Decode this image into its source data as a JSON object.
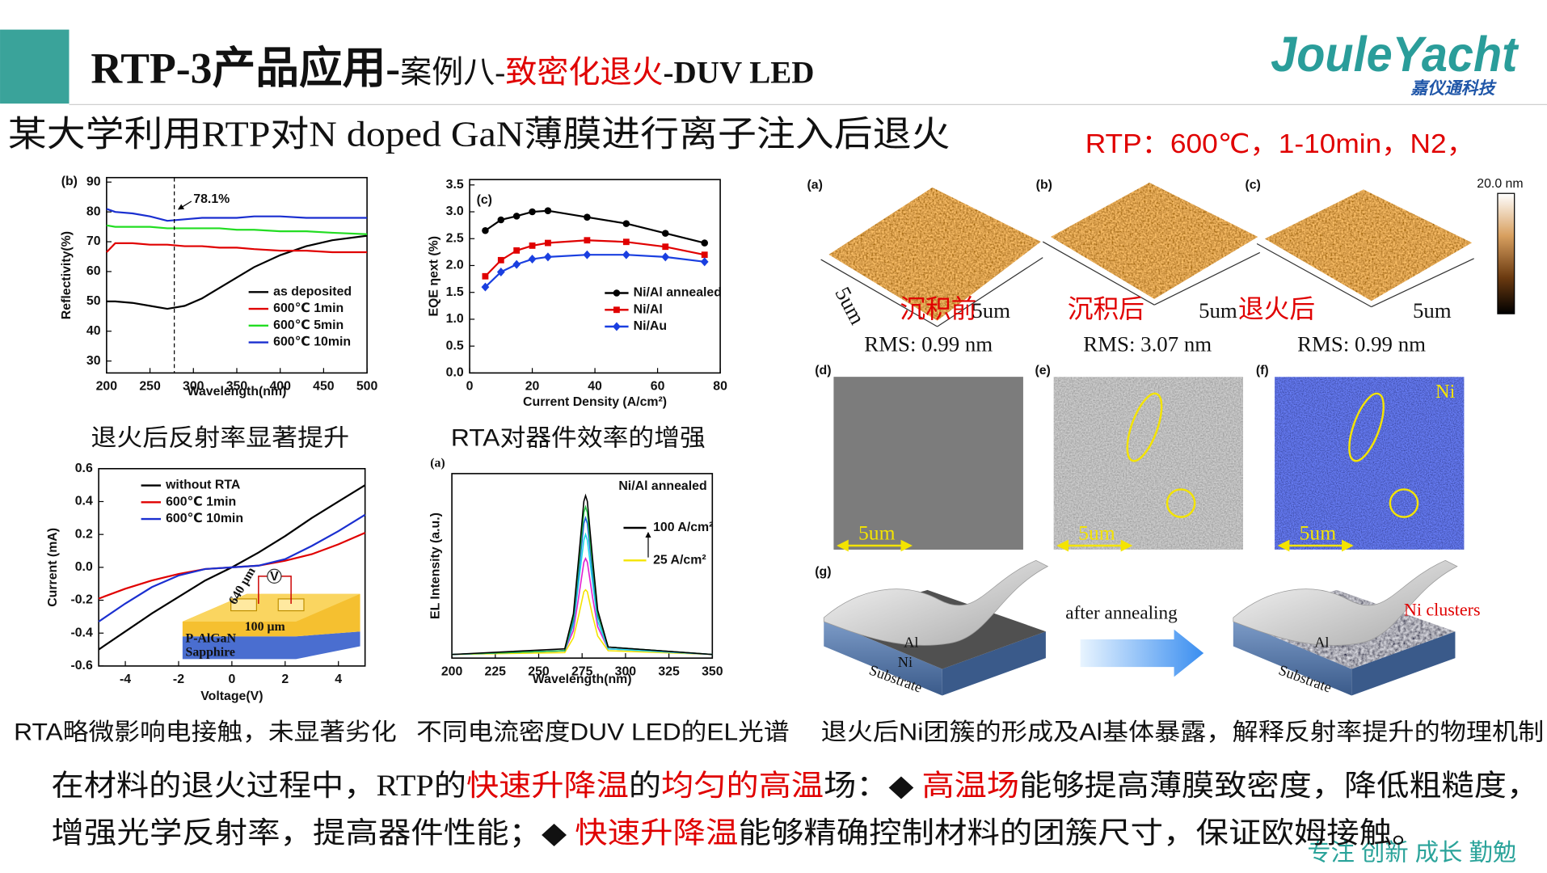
{
  "header": {
    "title_main": "RTP-3产品应用-",
    "title_case": "案例八-",
    "title_red": "致密化退火",
    "title_tail": "-DUV LED",
    "logo": "JouleYacht",
    "logo_sub": "嘉仪通科技"
  },
  "subtitle": "某大学利用RTP对N doped GaN薄膜进行离子注入后退火",
  "conditions": "RTP：600℃，1-10min，N2，",
  "figures": {
    "refl": {
      "panel": "(b)",
      "xlabel": "Wavelength(nm)",
      "ylabel": "Reflectivity(%)",
      "caption": "退火后反射率显著提升",
      "xlim": [
        200,
        500
      ],
      "ylim": [
        26,
        91.5
      ],
      "xticks": [
        200,
        250,
        300,
        350,
        400,
        450,
        500
      ],
      "yticks": [
        30,
        40,
        50,
        60,
        70,
        80,
        90
      ],
      "x": [
        200,
        210,
        230,
        250,
        270,
        290,
        310,
        330,
        350,
        370,
        400,
        430,
        460,
        500
      ],
      "annotation": {
        "text": "78.1%",
        "x": 278
      },
      "series": [
        {
          "name": "as deposited",
          "color": "#000000",
          "values": [
            50,
            50,
            49.5,
            48.5,
            47.5,
            48.5,
            51,
            54.5,
            58,
            61.5,
            65.5,
            68.5,
            70.5,
            72
          ]
        },
        {
          "name": "600℃ 1min",
          "color": "#e00000",
          "values": [
            66.5,
            69.5,
            69.5,
            69,
            69,
            68.5,
            68.5,
            68,
            68,
            67.5,
            67,
            67,
            66.5,
            66.5
          ]
        },
        {
          "name": "600℃ 5min",
          "color": "#22dd22",
          "values": [
            75.5,
            75,
            75,
            75,
            74.5,
            74.5,
            74.5,
            74.5,
            74,
            74,
            73.5,
            73.5,
            73,
            72.5
          ]
        },
        {
          "name": "600℃ 10min",
          "color": "#1a2fd0",
          "values": [
            81,
            80,
            79.5,
            78.5,
            77,
            77.5,
            78,
            78,
            78,
            78.5,
            78.5,
            78,
            78,
            78
          ]
        }
      ]
    },
    "eqe": {
      "panel": "(c)",
      "xlabel": "Current Density (A/cm²)",
      "ylabel": "EQE ηext (%)",
      "caption": "RTA对器件效率的增强",
      "xlim": [
        0,
        80
      ],
      "ylim": [
        0,
        3.6
      ],
      "xticks": [
        0,
        20,
        40,
        60,
        80
      ],
      "yticks": [
        {
          "value": 0,
          "label": "0.0"
        },
        0.5,
        {
          "value": 1,
          "label": "1.0"
        },
        1.5,
        {
          "value": 2,
          "label": "2.0"
        },
        2.5,
        {
          "value": 3,
          "label": "3.0"
        },
        3.5
      ],
      "series": [
        {
          "name": "Ni/Al annealed",
          "color": "#000000",
          "marker": "circle",
          "x": [
            5,
            10,
            15,
            20,
            25,
            37.5,
            50,
            62.5,
            75
          ],
          "values": [
            2.65,
            2.85,
            2.92,
            3.0,
            3.02,
            2.9,
            2.78,
            2.6,
            2.42
          ]
        },
        {
          "name": "Ni/Al",
          "color": "#e00000",
          "marker": "square",
          "x": [
            5,
            10,
            15,
            20,
            25,
            37.5,
            50,
            62.5,
            75
          ],
          "values": [
            1.8,
            2.1,
            2.28,
            2.37,
            2.42,
            2.47,
            2.44,
            2.35,
            2.2
          ]
        },
        {
          "name": "Ni/Au",
          "color": "#1a3fe0",
          "marker": "diamond",
          "x": [
            5,
            10,
            15,
            20,
            25,
            37.5,
            50,
            62.5,
            75
          ],
          "values": [
            1.6,
            1.88,
            2.02,
            2.12,
            2.16,
            2.2,
            2.2,
            2.16,
            2.07
          ]
        }
      ]
    },
    "iv": {
      "xlabel": "Voltage(V)",
      "ylabel": "Current (mA)",
      "caption": "RTA略微影响电接触，未显著劣化",
      "xlim": [
        -5,
        5
      ],
      "ylim": [
        -0.6,
        0.6
      ],
      "xticks": [
        -4,
        -2,
        0,
        2,
        4
      ],
      "yticks": [
        0.6,
        0.4,
        0.2,
        {
          "value": 0,
          "label": "0.0"
        },
        -0.2,
        -0.4,
        -0.6
      ],
      "x": [
        -5,
        -4,
        -3,
        -2,
        -1,
        0,
        1,
        2,
        3,
        4,
        5
      ],
      "inset": {
        "width": "640 μm",
        "gap": "100 μm",
        "layer": "P-AlGaN",
        "substrate": "Sapphire",
        "meter": "V"
      },
      "series": [
        {
          "name": "without RTA",
          "color": "#000000",
          "values": [
            -0.5,
            -0.39,
            -0.28,
            -0.18,
            -0.08,
            0,
            0.09,
            0.19,
            0.3,
            0.4,
            0.5
          ]
        },
        {
          "name": "600℃ 1min",
          "color": "#e00000",
          "values": [
            -0.19,
            -0.13,
            -0.08,
            -0.04,
            -0.01,
            0,
            0.01,
            0.04,
            0.08,
            0.14,
            0.21
          ]
        },
        {
          "name": "600℃ 10min",
          "color": "#1a2fd0",
          "values": [
            -0.33,
            -0.22,
            -0.12,
            -0.05,
            -0.01,
            0,
            0.01,
            0.05,
            0.13,
            0.22,
            0.32
          ]
        }
      ]
    },
    "el": {
      "panel": "(a)",
      "legend_title": "Ni/Al annealed",
      "high": "100 A/cm²",
      "low": "25 A/cm²",
      "xlabel": "Wavelength(nm)",
      "ylabel": "EL Intensity (a.u.)",
      "caption": "不同电流密度DUV LED的EL光谱",
      "xlim": [
        200,
        350
      ],
      "ylim": [
        0,
        1
      ],
      "xticks": [
        200,
        225,
        250,
        275,
        300,
        325,
        350
      ],
      "x": [
        200,
        265,
        270,
        273,
        276,
        277,
        278,
        281,
        284,
        290,
        350
      ],
      "series": [
        {
          "color": "#f4e400",
          "values": [
            0.02,
            0.03,
            0.11,
            0.23,
            0.36,
            0.37,
            0.36,
            0.23,
            0.12,
            0.04,
            0.02
          ]
        },
        {
          "color": "#e020d0",
          "values": [
            0.02,
            0.04,
            0.15,
            0.33,
            0.52,
            0.54,
            0.52,
            0.33,
            0.17,
            0.05,
            0.02
          ]
        },
        {
          "color": "#20d8e8",
          "values": [
            0.02,
            0.04,
            0.18,
            0.41,
            0.64,
            0.67,
            0.64,
            0.41,
            0.2,
            0.05,
            0.02
          ]
        },
        {
          "color": "#2060e0",
          "values": [
            0.02,
            0.04,
            0.2,
            0.46,
            0.73,
            0.76,
            0.73,
            0.46,
            0.23,
            0.06,
            0.02
          ]
        },
        {
          "color": "#20c040",
          "values": [
            0.02,
            0.04,
            0.22,
            0.5,
            0.79,
            0.82,
            0.79,
            0.5,
            0.24,
            0.06,
            0.02
          ]
        },
        {
          "color": "#000000",
          "values": [
            0.02,
            0.05,
            0.24,
            0.54,
            0.85,
            0.88,
            0.85,
            0.54,
            0.26,
            0.06,
            0.02
          ]
        }
      ]
    },
    "afm": {
      "panels": [
        "(a)",
        "(b)",
        "(c)"
      ],
      "scale": "20.0 nm",
      "side": "5um",
      "states": [
        "沉积前",
        "沉积后",
        "退火后"
      ],
      "sizes": [
        "5um",
        "5um",
        "5um"
      ],
      "rms": [
        "RMS: 0.99 nm",
        "RMS: 3.07 nm",
        "RMS: 0.99 nm"
      ]
    },
    "sem": {
      "panels": [
        "(d)",
        "(e)",
        "(f)"
      ],
      "scales": [
        "5um",
        "5um",
        "5um"
      ],
      "element": "Ni"
    },
    "scheme": {
      "panel": "(g)",
      "arrow": "after annealing",
      "clusters": "Ni clusters",
      "al": [
        "Al",
        "Al"
      ],
      "ni": "Ni",
      "substrate": [
        "Substrate",
        "Substrate"
      ],
      "caption": "退火后Ni团簇的形成及Al基体暴露，解释反射率提升的物理机制"
    }
  },
  "paragraph": [
    [
      {
        "text": "在材料的退火过程中，RTP的",
        "color": "#111111"
      },
      {
        "text": "快速升降温",
        "color": "#e00000"
      },
      {
        "text": "的",
        "color": "#111111"
      },
      {
        "text": "均匀的高温",
        "color": "#e00000"
      },
      {
        "text": "场：◆ ",
        "color": "#111111"
      },
      {
        "text": "高温场",
        "color": "#e00000"
      },
      {
        "text": "能够提高薄膜致密度，降低粗糙度，",
        "color": "#111111"
      }
    ],
    [
      {
        "text": "增强光学反射率，提高器件性能；◆ ",
        "color": "#111111"
      },
      {
        "text": "快速升降温",
        "color": "#e00000"
      },
      {
        "text": "能够精确控制材料的团簇尺寸，保证欧姆接触。",
        "color": "#111111"
      }
    ]
  ],
  "slogan": "专注 创新 成长 勤勉"
}
